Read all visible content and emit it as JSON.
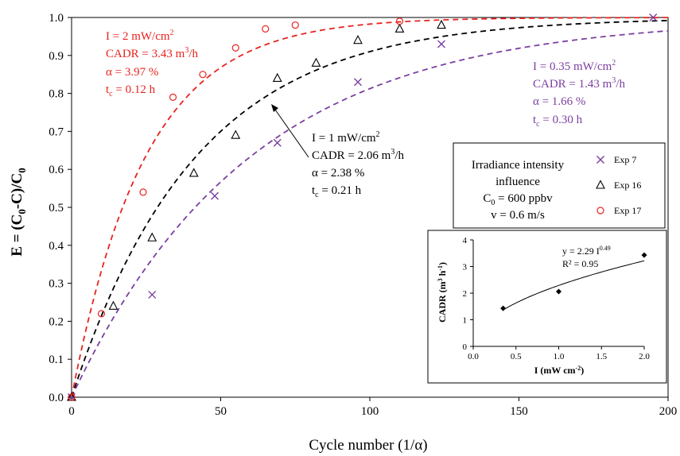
{
  "chart_data": [
    {
      "type": "scatter",
      "xlabel": "Cycle number (1/α)",
      "ylabel": "E = (C0-C)/C0",
      "ylabel_sub": "0",
      "xlim": [
        0,
        200
      ],
      "ylim": [
        0,
        1.0
      ],
      "x_ticks": [
        "0",
        "50",
        "100",
        "150",
        "200"
      ],
      "y_ticks": [
        "0.0",
        "0.1",
        "0.2",
        "0.3",
        "0.4",
        "0.5",
        "0.6",
        "0.7",
        "0.8",
        "0.9",
        "1.0"
      ],
      "grid": false,
      "legend_title": [
        "Irradiance intensity",
        "influence",
        "C0 = 600 ppbv",
        "v = 0.6 m/s"
      ],
      "legend_placement": "center-right",
      "series": [
        {
          "name": "Exp 7",
          "marker": "x",
          "color": "#7b3fa0",
          "points": [
            [
              0,
              0.0
            ],
            [
              27,
              0.27
            ],
            [
              48,
              0.53
            ],
            [
              69,
              0.67
            ],
            [
              96,
              0.83
            ],
            [
              124,
              0.93
            ],
            [
              195,
              1.0
            ]
          ],
          "fit_alpha": 0.0166,
          "annotation": [
            "I = 0.35 mW/cm2",
            "CADR = 1.43 m3/h",
            "α = 1.66 %",
            "tc = 0.30 h"
          ]
        },
        {
          "name": "Exp 16",
          "marker": "triangle",
          "color": "#000000",
          "points": [
            [
              0,
              0.0
            ],
            [
              14,
              0.24
            ],
            [
              27,
              0.42
            ],
            [
              41,
              0.59
            ],
            [
              55,
              0.69
            ],
            [
              69,
              0.84
            ],
            [
              82,
              0.88
            ],
            [
              96,
              0.94
            ],
            [
              110,
              0.97
            ],
            [
              124,
              0.98
            ]
          ],
          "fit_alpha": 0.0238,
          "annotation": [
            "I = 1 mW/cm2",
            "CADR = 2.06 m3/h",
            "α = 2.38 %",
            "tc = 0.21 h"
          ]
        },
        {
          "name": "Exp 17",
          "marker": "circle",
          "color": "#e8231f",
          "points": [
            [
              0,
              0.0
            ],
            [
              10,
              0.22
            ],
            [
              24,
              0.54
            ],
            [
              34,
              0.79
            ],
            [
              44,
              0.85
            ],
            [
              55,
              0.92
            ],
            [
              65,
              0.97
            ],
            [
              75,
              0.98
            ],
            [
              110,
              0.99
            ]
          ],
          "fit_alpha": 0.0397,
          "annotation": [
            "I = 2 mW/cm2",
            "CADR = 3.43 m3/h",
            "α = 3.97 %",
            "tc = 0.12 h"
          ]
        }
      ]
    },
    {
      "type": "scatter",
      "xlabel": "I (mW cm-2)",
      "ylabel": "CADR (m3 h-1)",
      "xlim": [
        0.0,
        2.0
      ],
      "ylim": [
        0,
        4
      ],
      "x_ticks": [
        "0.0",
        "0.5",
        "1.0",
        "1.5",
        "2.0"
      ],
      "y_ticks": [
        "0",
        "1",
        "2",
        "3",
        "4"
      ],
      "points": [
        [
          0.35,
          1.43
        ],
        [
          1.0,
          2.06
        ],
        [
          2.0,
          3.43
        ]
      ],
      "fit": {
        "a": 2.29,
        "b": 0.49
      },
      "equation": "y = 2.29  I0.49",
      "r2": "R² = 0.95"
    }
  ],
  "colors": {
    "exp7": "#7b3fa0",
    "exp16": "#000000",
    "exp17": "#e8231f"
  }
}
